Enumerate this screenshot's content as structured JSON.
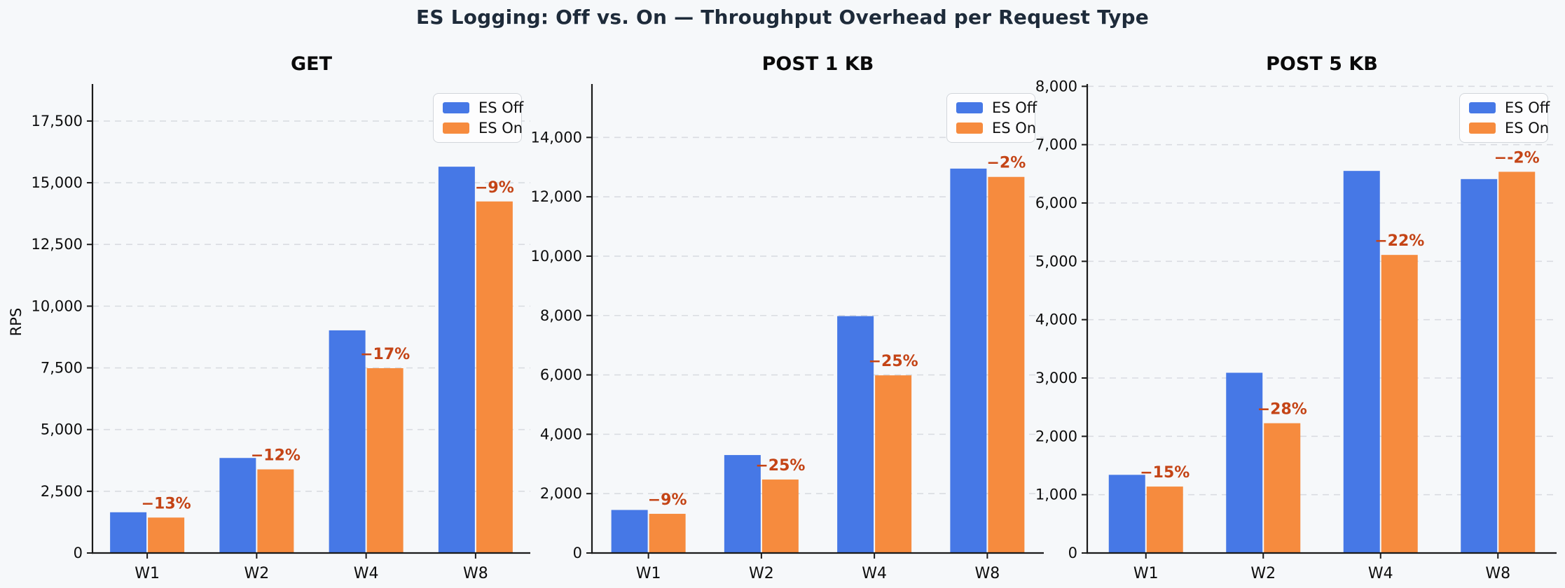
{
  "title": "ES Logging: Off vs. On — Throughput Overhead per Request Type",
  "colors": {
    "es_off": "#4678e6",
    "es_on": "#f68b3e",
    "annotation": "#c44416",
    "title": "#1e2b3a",
    "figure_background": "#f6f8fa",
    "grid": "#d9dce1",
    "spine": "#1a1a1a",
    "tick_text": "#0d0d0d"
  },
  "legend": {
    "items": [
      {
        "label": "ES Off",
        "color_key": "es_off"
      },
      {
        "label": "ES On",
        "color_key": "es_on"
      }
    ]
  },
  "chart_data": [
    {
      "type": "bar",
      "title": "GET",
      "ylabel": "RPS",
      "categories": [
        "W1",
        "W2",
        "W4",
        "W8"
      ],
      "series": [
        {
          "name": "ES Off",
          "values": [
            1650,
            3850,
            9020,
            15650
          ]
        },
        {
          "name": "ES On",
          "values": [
            1436,
            3388,
            7487,
            14242
          ]
        }
      ],
      "annotations": [
        "−13%",
        "−12%",
        "−17%",
        "−9%"
      ],
      "yticks": [
        0,
        2500,
        5000,
        7500,
        10000,
        12500,
        15000,
        17500
      ],
      "ylim": [
        0,
        19000
      ],
      "grid": "dashed-horizontal",
      "legend_position": "upper right"
    },
    {
      "type": "bar",
      "title": "POST 1 KB",
      "ylabel": "",
      "categories": [
        "W1",
        "W2",
        "W4",
        "W8"
      ],
      "series": [
        {
          "name": "ES Off",
          "values": [
            1450,
            3300,
            7980,
            12950
          ]
        },
        {
          "name": "ES On",
          "values": [
            1320,
            2475,
            5985,
            12670
          ]
        }
      ],
      "annotations": [
        "−9%",
        "−25%",
        "−25%",
        "−2%"
      ],
      "yticks": [
        0,
        2000,
        4000,
        6000,
        8000,
        10000,
        12000,
        14000
      ],
      "ylim": [
        0,
        15800
      ],
      "grid": "dashed-horizontal",
      "legend_position": "upper right"
    },
    {
      "type": "bar",
      "title": "POST 5 KB",
      "ylabel": "",
      "categories": [
        "W1",
        "W2",
        "W4",
        "W8"
      ],
      "series": [
        {
          "name": "ES Off",
          "values": [
            1340,
            3090,
            6550,
            6410
          ]
        },
        {
          "name": "ES On",
          "values": [
            1139,
            2225,
            5110,
            6535
          ]
        }
      ],
      "annotations": [
        "−15%",
        "−28%",
        "−22%",
        "−-2%"
      ],
      "yticks": [
        0,
        1000,
        2000,
        3000,
        4000,
        5000,
        6000,
        7000,
        8000
      ],
      "ylim": [
        0,
        8040
      ],
      "grid": "dashed-horizontal",
      "legend_position": "upper right"
    }
  ]
}
